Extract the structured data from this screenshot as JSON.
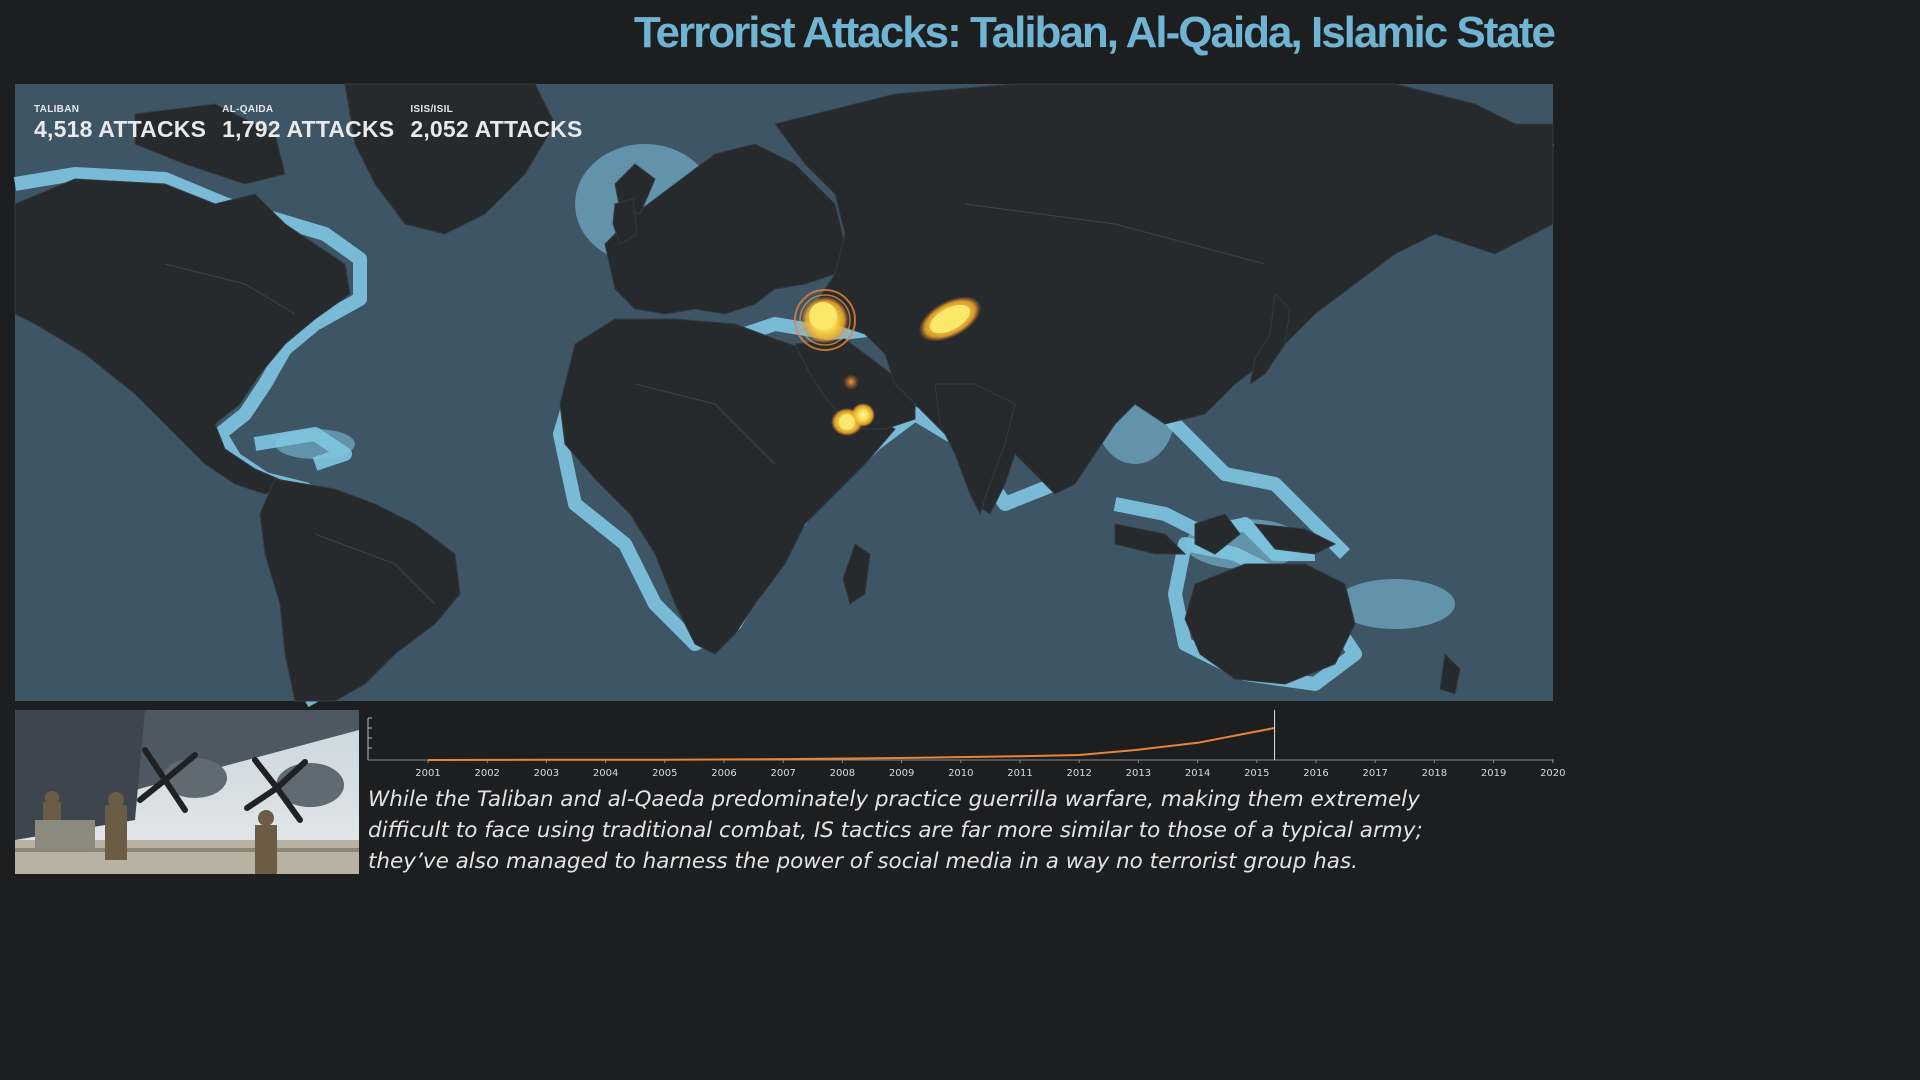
{
  "title": "Terrorist Attacks: Taliban, Al-Qaida, Islamic State",
  "counters": [
    {
      "label": "TALIBAN",
      "value": "4,518 ATTACKS"
    },
    {
      "label": "AL-QAIDA",
      "value": "1,792 ATTACKS"
    },
    {
      "label": "ISIS/ISIL",
      "value": "2,052 ATTACKS"
    }
  ],
  "colors": {
    "title": "#6fb4d2",
    "ocean": "#3e5566",
    "shelf": "#7fc6e2",
    "land": "#262a2d",
    "hotspot": "#f6d744",
    "timeline_line": "#e8833a"
  },
  "timeline": {
    "years": [
      "2001",
      "2002",
      "2003",
      "2004",
      "2005",
      "2006",
      "2007",
      "2008",
      "2009",
      "2010",
      "2011",
      "2012",
      "2013",
      "2014",
      "2015",
      "2016",
      "2017",
      "2018",
      "2019",
      "2020"
    ],
    "current_year": 2015.3,
    "cumulative_attacks": [
      [
        2001,
        5
      ],
      [
        2003,
        40
      ],
      [
        2005,
        90
      ],
      [
        2007,
        230
      ],
      [
        2009,
        520
      ],
      [
        2011,
        1000
      ],
      [
        2012,
        1300
      ],
      [
        2013,
        2700
      ],
      [
        2014,
        4500
      ],
      [
        2015.3,
        8362
      ]
    ]
  },
  "hotspots": [
    {
      "name": "iraq-syria-hotspot",
      "region": "Iraq / Syria",
      "size": "large",
      "rings": true
    },
    {
      "name": "afghanistan-pakistan-hotspot",
      "region": "Afghanistan / Pakistan",
      "size": "large",
      "rings": false
    },
    {
      "name": "yemen-hotspot",
      "region": "Yemen",
      "size": "medium",
      "rings": false
    },
    {
      "name": "saudi-hotspot",
      "region": "Saudi Arabia",
      "size": "small",
      "rings": false
    }
  ],
  "caption": [
    "While the Taliban and al-Qaeda predominately practice guerrilla warfare, making them extremely",
    "difficult to face using traditional combat, IS tactics are far more similar to those of a typical army;",
    "they’ve also managed to harness the power of social media in a way no terrorist group has."
  ]
}
